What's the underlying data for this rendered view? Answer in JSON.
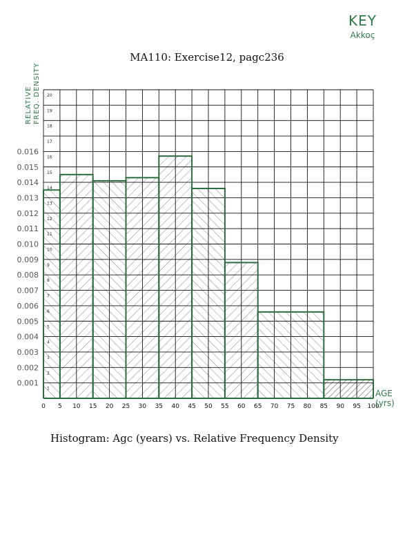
{
  "header": {
    "key_label": "KEY",
    "author": "Akkoç",
    "title": "MA110: Exercise12, pagc236"
  },
  "caption": "Histogram: Agc (years) vs. Relative Frequency Density",
  "axis": {
    "ylabel_line1": "RELATIVE",
    "ylabel_line2": "FREQ. DENSITY",
    "xlabel_line1": "AGE",
    "xlabel_line2": "(yrs)"
  },
  "colors": {
    "bar_outline": "#2e6b3f",
    "grid": "#111111",
    "hatch": "#555555",
    "annotation": "#2e7a47"
  },
  "chart_data": {
    "type": "bar",
    "title": "MA110: Exercise12, pagc236",
    "subtitle": "Histogram: Agc (years) vs. Relative Frequency Density",
    "xlabel": "AGE (yrs)",
    "ylabel": "RELATIVE FREQ. DENSITY",
    "bins": [
      {
        "start": 0,
        "end": 5,
        "value": 0.0135
      },
      {
        "start": 5,
        "end": 15,
        "value": 0.0145
      },
      {
        "start": 15,
        "end": 25,
        "value": 0.0141
      },
      {
        "start": 25,
        "end": 35,
        "value": 0.0143
      },
      {
        "start": 35,
        "end": 45,
        "value": 0.0157
      },
      {
        "start": 45,
        "end": 55,
        "value": 0.0136
      },
      {
        "start": 55,
        "end": 65,
        "value": 0.0088
      },
      {
        "start": 65,
        "end": 85,
        "value": 0.0056
      },
      {
        "start": 85,
        "end": 100,
        "value": 0.0012
      }
    ],
    "categories": [
      "0-5",
      "5-15",
      "15-25",
      "25-35",
      "35-45",
      "45-55",
      "55-65",
      "65-85",
      "85-100"
    ],
    "values": [
      0.0135,
      0.0145,
      0.0141,
      0.0143,
      0.0157,
      0.0136,
      0.0088,
      0.0056,
      0.0012
    ],
    "xlim": [
      0,
      100
    ],
    "ylim": [
      0,
      0.02
    ],
    "x_ticks": [
      0,
      5,
      10,
      15,
      20,
      25,
      30,
      35,
      40,
      45,
      50,
      55,
      60,
      65,
      70,
      75,
      80,
      85,
      90,
      95,
      100
    ],
    "y_tick_labels": [
      "0.001",
      "0.002",
      "0.003",
      "0.004",
      "0.005",
      "0.006",
      "0.007",
      "0.008",
      "0.009",
      "0.010",
      "0.011",
      "0.012",
      "0.013",
      "0.014",
      "0.015",
      "0.016"
    ],
    "grid_row_numbers": [
      "1",
      "2",
      "3",
      "4",
      "5",
      "6",
      "7",
      "8",
      "9",
      "10",
      "11",
      "12",
      "13",
      "14",
      "15",
      "16",
      "17",
      "18",
      "19",
      "20"
    ],
    "grid": true,
    "legend": "none"
  }
}
